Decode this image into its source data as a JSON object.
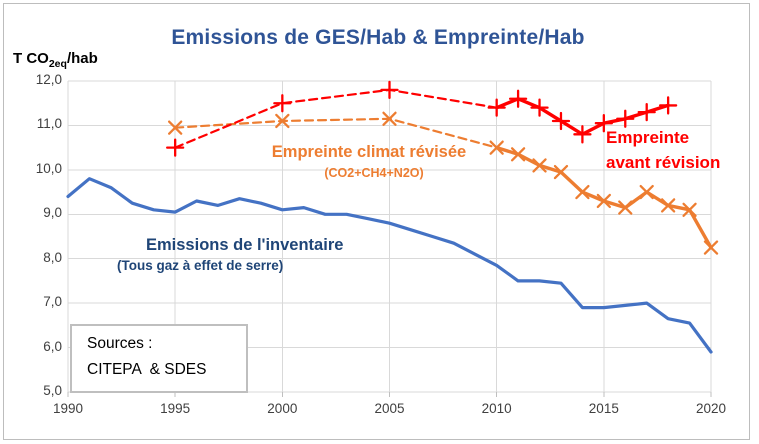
{
  "title_note": "",
  "y_unit": {
    "pre": "T CO",
    "sub": "2eq",
    "post": "/hab"
  },
  "sources_box": {
    "line1": "Sources :",
    "line2": "CITEPA  & SDES"
  },
  "annotations": {
    "revised_line1": "Empreinte climat révisée",
    "revised_line2": "(CO2+CH4+N2O)",
    "before_line1": "Empreinte",
    "before_line2": "avant révision",
    "inventory_line1": "Emissions de l'inventaire",
    "inventory_line2": "(Tous gaz à effet de serre)"
  },
  "chart_data": {
    "type": "line",
    "title": "Emissions de GES/Hab & Empreinte/Hab",
    "xlabel": "",
    "ylabel": "T CO2eq/hab",
    "x_axis": {
      "min": 1990,
      "max": 2020,
      "tick_step": 5,
      "tick_labels": [
        "1990",
        "1995",
        "2000",
        "2005",
        "2010",
        "2015",
        "2020"
      ]
    },
    "y_axis": {
      "min": 5,
      "max": 12,
      "tick_step": 1,
      "tick_labels": [
        "12,0",
        "11,0",
        "10,0",
        "9,0",
        "8,0",
        "7,0",
        "6,0",
        "5,0"
      ]
    },
    "grid": true,
    "grid_color": "#D9D9D9",
    "legend": "none (labels drawn on chart)",
    "series": [
      {
        "name": "Emissions de l'inventaire (Tous gaz à effet de serre)",
        "color": "#4472C4",
        "line": "solid",
        "marker": "none",
        "x": [
          1990,
          1991,
          1992,
          1993,
          1994,
          1995,
          1996,
          1997,
          1998,
          1999,
          2000,
          2001,
          2002,
          2003,
          2004,
          2005,
          2006,
          2007,
          2008,
          2009,
          2010,
          2011,
          2012,
          2013,
          2014,
          2015,
          2016,
          2017,
          2018,
          2019,
          2020
        ],
        "values": [
          9.4,
          9.8,
          9.6,
          9.25,
          9.1,
          9.05,
          9.3,
          9.2,
          9.35,
          9.25,
          9.1,
          9.15,
          9.0,
          9.0,
          8.9,
          8.8,
          8.65,
          8.5,
          8.35,
          8.1,
          7.85,
          7.5,
          7.5,
          7.45,
          6.9,
          6.9,
          6.95,
          7.0,
          6.65,
          6.55,
          5.9
        ]
      },
      {
        "name": "Empreinte climat révisée (CO2+CH4+N2O)",
        "color": "#ED7D31",
        "line": "dashed",
        "solid_from": 2010,
        "marker": "x",
        "x": [
          1995,
          2000,
          2005,
          2010,
          2011,
          2012,
          2013,
          2014,
          2015,
          2016,
          2017,
          2018,
          2019,
          2020
        ],
        "values": [
          10.95,
          11.1,
          11.15,
          10.5,
          10.35,
          10.1,
          9.95,
          9.5,
          9.3,
          9.15,
          9.5,
          9.2,
          9.1,
          8.25
        ]
      },
      {
        "name": "Empreinte avant révision",
        "color": "#FF0000",
        "line": "dashed",
        "solid_from": 2010,
        "marker": "plus",
        "x": [
          1995,
          2000,
          2005,
          2010,
          2011,
          2012,
          2013,
          2014,
          2015,
          2016,
          2017,
          2018
        ],
        "values": [
          10.5,
          11.5,
          11.8,
          11.4,
          11.6,
          11.4,
          11.1,
          10.8,
          11.05,
          11.15,
          11.3,
          11.45
        ]
      }
    ]
  }
}
